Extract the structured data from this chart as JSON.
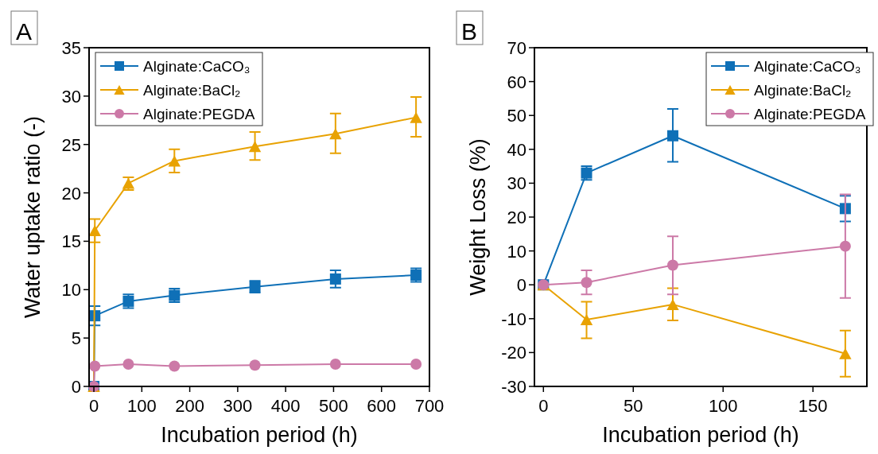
{
  "chart_data": [
    {
      "type": "line",
      "title": "A",
      "xlabel": "Incubation period (h)",
      "ylabel": "Water uptake ratio (-)",
      "xlim": [
        -10,
        700
      ],
      "xticks": [
        0,
        100,
        200,
        300,
        400,
        500,
        600,
        700
      ],
      "ylim": [
        0,
        35
      ],
      "yticks": [
        0,
        5,
        10,
        15,
        20,
        25,
        30,
        35
      ],
      "legend": "top left",
      "x": [
        0,
        2,
        72,
        168,
        336,
        504,
        672
      ],
      "series": [
        {
          "name": "Alginate:CaCO₃",
          "color": "#0f70b7",
          "marker": "square",
          "values": [
            0,
            7.3,
            8.8,
            9.4,
            10.3,
            11.1,
            11.5
          ],
          "errors": [
            null,
            [
              6.3,
              8.3
            ],
            [
              8.1,
              9.5
            ],
            [
              8.7,
              10.1
            ],
            [
              9.7,
              10.9
            ],
            [
              10.2,
              12.0
            ],
            [
              10.8,
              12.2
            ]
          ]
        },
        {
          "name": "Alginate:BaCl₂",
          "color": "#e8a202",
          "marker": "triangle",
          "values": [
            0,
            16.1,
            21.0,
            23.3,
            24.8,
            26.1,
            27.8
          ],
          "errors": [
            null,
            [
              14.9,
              17.3
            ],
            [
              20.3,
              21.6
            ],
            [
              22.1,
              24.5
            ],
            [
              23.4,
              26.3
            ],
            [
              24.1,
              28.2
            ],
            [
              25.8,
              29.9
            ]
          ]
        },
        {
          "name": "Alginate:PEGDA",
          "color": "#cc79a7",
          "marker": "circle",
          "values": [
            0,
            2.1,
            2.3,
            2.1,
            2.2,
            2.3,
            2.3
          ]
        }
      ]
    },
    {
      "type": "line",
      "title": "B",
      "xlabel": "Incubation period (h)",
      "ylabel": "Weight Loss (%)",
      "xlim": [
        -5,
        180
      ],
      "xticks": [
        0,
        50,
        100,
        150
      ],
      "ylim": [
        -30,
        70
      ],
      "yticks": [
        -30,
        -20,
        -10,
        0,
        10,
        20,
        30,
        40,
        50,
        60,
        70
      ],
      "legend": "top right",
      "x": [
        0,
        24,
        72,
        168
      ],
      "series": [
        {
          "name": "Alginate:CaCO₃",
          "color": "#0f70b7",
          "marker": "square",
          "values": [
            0,
            33,
            44,
            22.5
          ],
          "errors": [
            null,
            [
              31,
              35
            ],
            [
              36.3,
              51.9
            ],
            [
              18.7,
              26.3
            ]
          ]
        },
        {
          "name": "Alginate:BaCl₂",
          "color": "#e8a202",
          "marker": "triangle",
          "values": [
            0,
            -10.3,
            -5.8,
            -20.3
          ],
          "errors": [
            null,
            [
              -15.8,
              -5
            ],
            [
              -10.5,
              -1
            ],
            [
              -27.1,
              -13.5
            ]
          ]
        },
        {
          "name": "Alginate:PEGDA",
          "color": "#cc79a7",
          "marker": "circle",
          "values": [
            0,
            0.7,
            5.8,
            11.4
          ],
          "errors": [
            null,
            [
              -2.8,
              4.3
            ],
            [
              -2.8,
              14.3
            ],
            [
              -3.9,
              26.7
            ]
          ]
        }
      ]
    }
  ]
}
